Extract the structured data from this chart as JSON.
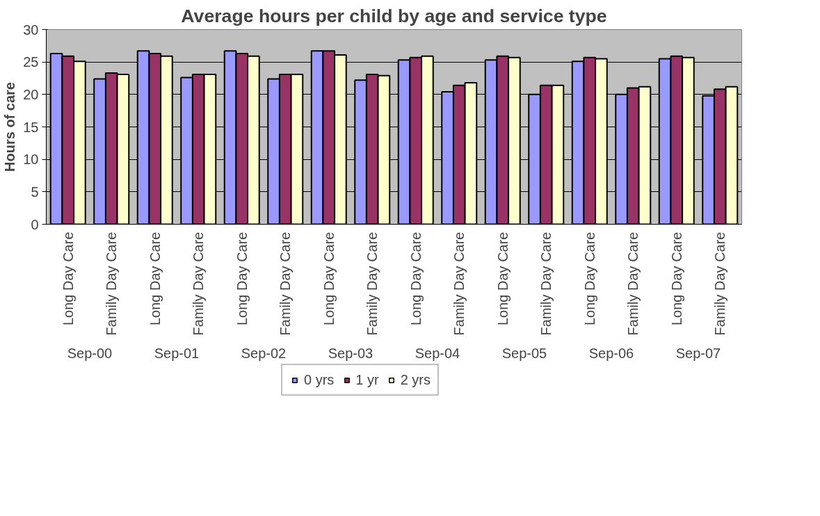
{
  "chart_data": {
    "type": "bar",
    "title": "Average hours per child by age and service type",
    "ylabel": "Hours of care",
    "categories": [
      "Long Day Care",
      "Family Day Care",
      "Long Day Care",
      "Family Day Care",
      "Long Day Care",
      "Family Day Care",
      "Long Day Care",
      "Family Day Care",
      "Long Day Care",
      "Family Day Care",
      "Long Day Care",
      "Family Day Care",
      "Long Day Care",
      "Family Day Care",
      "Long Day Care",
      "Family Day Care"
    ],
    "annotations": [
      "Sep-00",
      "Sep-01",
      "Sep-02",
      "Sep-03",
      "Sep-04",
      "Sep-05",
      "Sep-06",
      "Sep-07"
    ],
    "series": [
      {
        "name": "0 yrs",
        "color": "#9999ff",
        "values": [
          26.3,
          22.4,
          26.7,
          22.6,
          26.7,
          22.4,
          26.7,
          22.2,
          25.3,
          20.4,
          25.3,
          20.0,
          25.1,
          20.0,
          25.5,
          19.8
        ]
      },
      {
        "name": "1 yr",
        "color": "#993366",
        "values": [
          25.9,
          23.3,
          26.3,
          23.1,
          26.3,
          23.1,
          26.7,
          23.1,
          25.7,
          21.4,
          25.9,
          21.4,
          25.7,
          21.0,
          25.9,
          20.8
        ]
      },
      {
        "name": "2 yrs",
        "color": "#ffffcc",
        "values": [
          25.1,
          23.1,
          25.9,
          23.1,
          25.9,
          23.1,
          26.1,
          22.9,
          25.9,
          21.8,
          25.7,
          21.4,
          25.5,
          21.2,
          25.7,
          21.2
        ]
      }
    ],
    "ylim": [
      0,
      30
    ],
    "yticks": [
      0,
      5,
      10,
      15,
      20,
      25,
      30
    ],
    "grid": "y",
    "legend": "bottom"
  }
}
